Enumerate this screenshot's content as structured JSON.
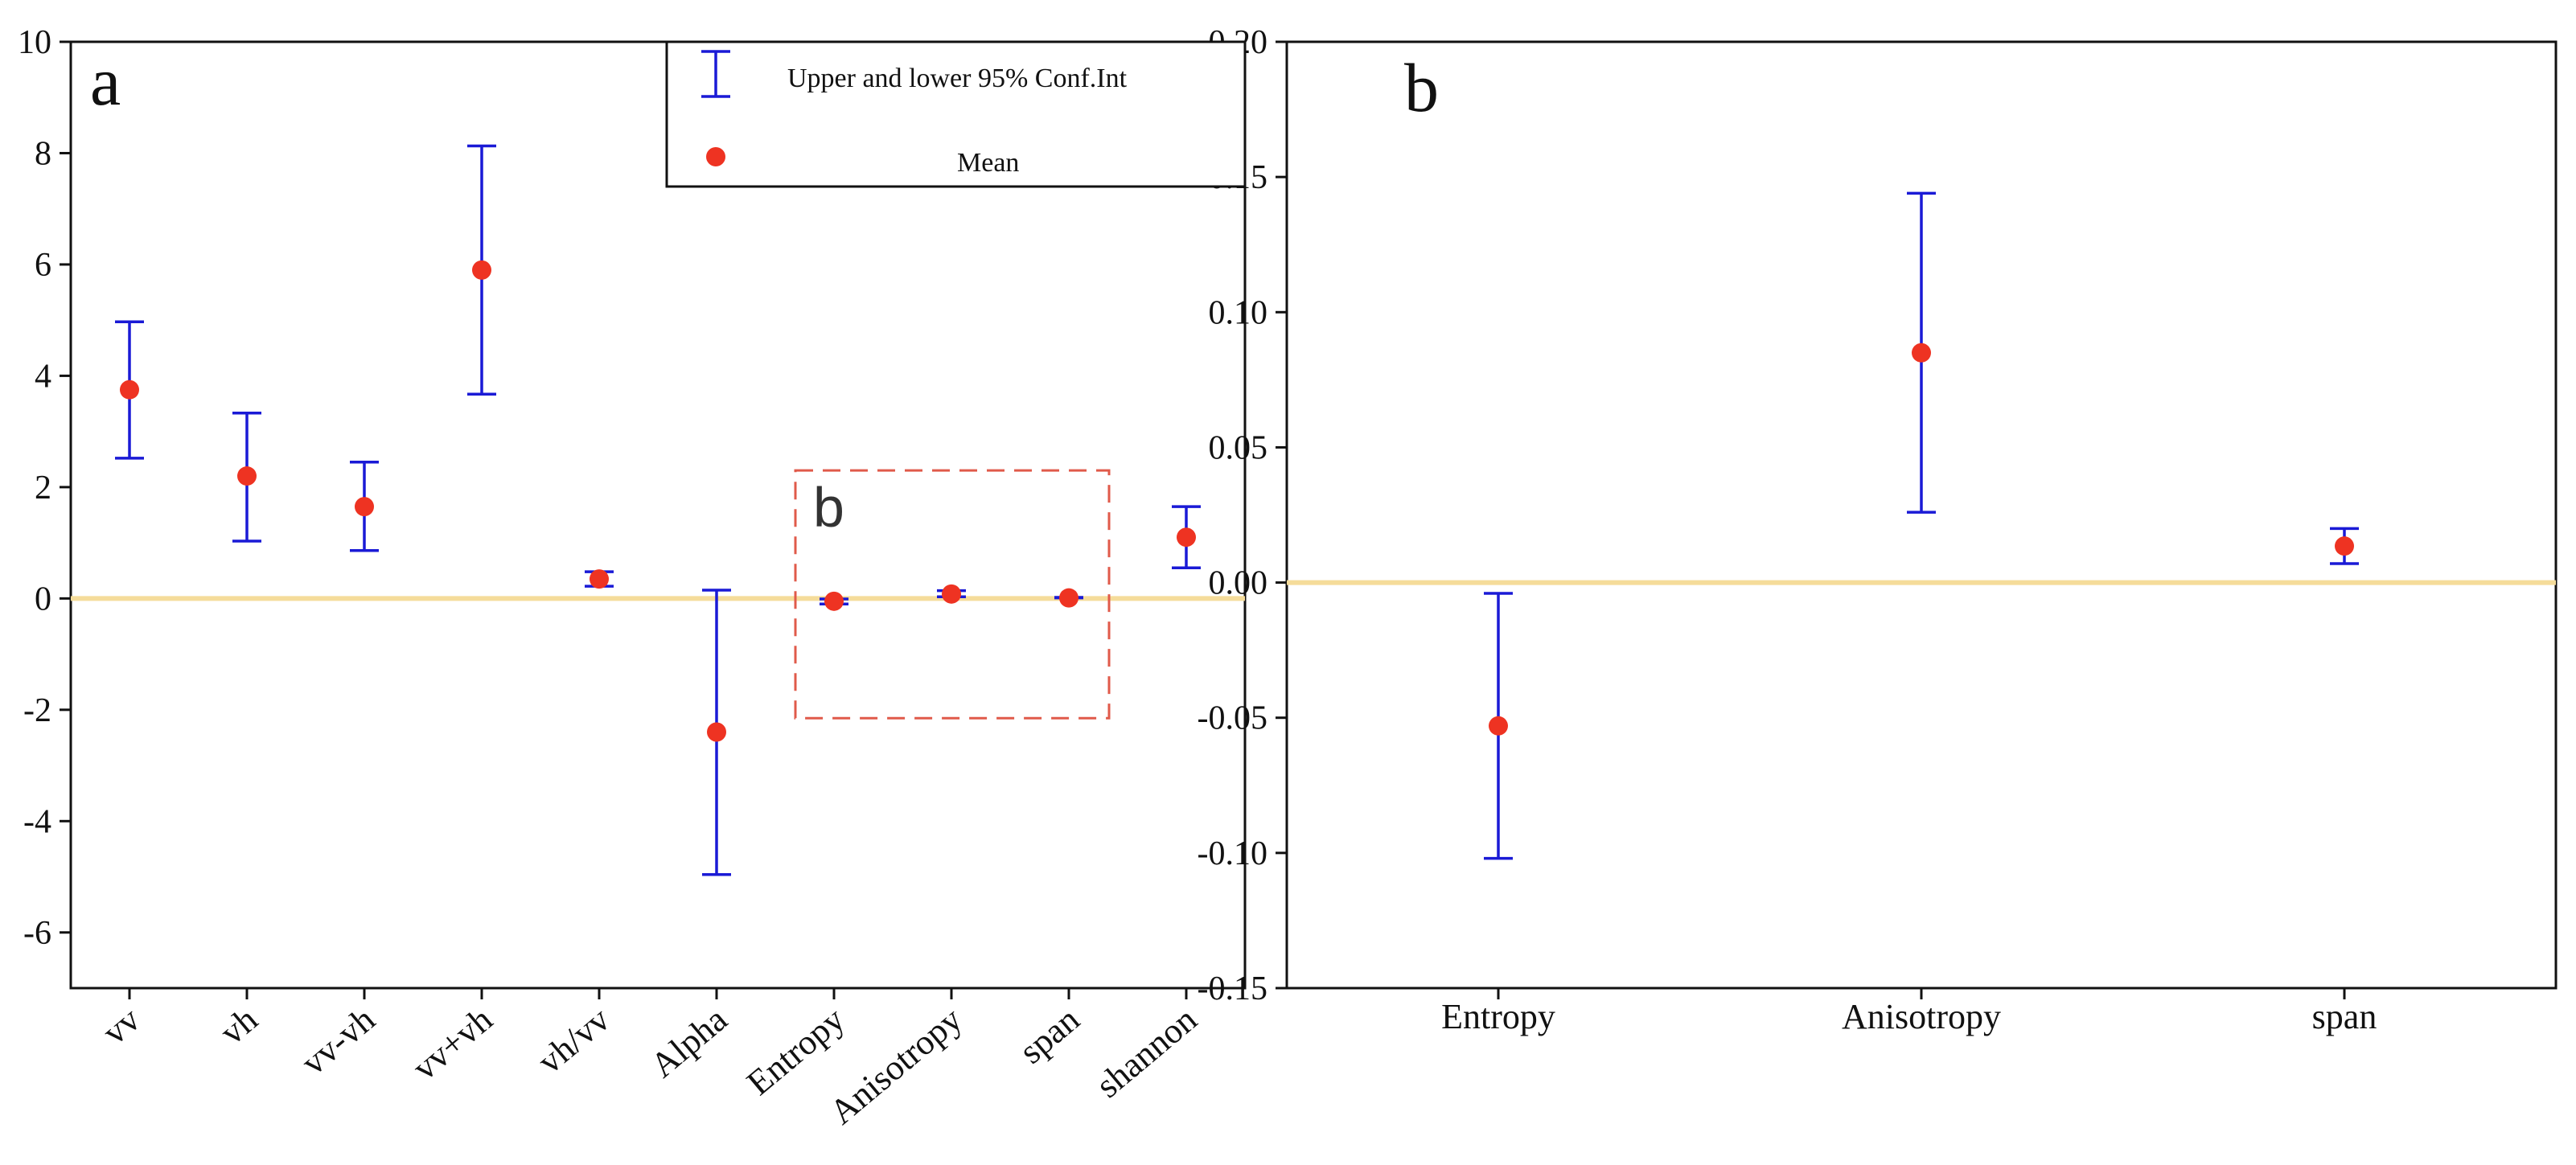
{
  "colors": {
    "errorbar": "#1a1ad6",
    "mean": "#ee3322",
    "zero_line": "#f5dc9a",
    "inset_box": "#e05a4a",
    "axis": "#111111"
  },
  "legend": {
    "ci_label": "Upper and lower 95% Conf.Int",
    "mean_label": "Mean"
  },
  "chart_data": [
    {
      "panel": "a",
      "type": "errorbar",
      "categories": [
        "vv",
        "vh",
        "vv-vh",
        "vv+vh",
        "vh/vv",
        "Alpha",
        "Entropy",
        "Anisotropy",
        "span",
        "shannon"
      ],
      "series": [
        {
          "name": "Mean",
          "values": [
            3.75,
            2.2,
            1.65,
            5.9,
            0.35,
            -2.4,
            -0.05,
            0.08,
            0.01,
            1.1
          ]
        },
        {
          "name": "Upper and lower 95% Conf.Int",
          "upper": [
            4.97,
            3.33,
            2.45,
            8.13,
            0.48,
            0.15,
            -0.01,
            0.14,
            0.02,
            1.65
          ],
          "lower": [
            2.52,
            1.03,
            0.86,
            3.67,
            0.22,
            -4.96,
            -0.1,
            0.03,
            0.01,
            0.55
          ]
        }
      ],
      "ylim": [
        -7,
        10
      ],
      "yticks": [
        -6,
        -4,
        -2,
        0,
        2,
        4,
        6,
        8,
        10
      ],
      "reference_line": 0,
      "inset_label": "b",
      "legend_position": "top-right"
    },
    {
      "panel": "b",
      "type": "errorbar",
      "categories": [
        "Entropy",
        "Anisotropy",
        "span"
      ],
      "series": [
        {
          "name": "Mean",
          "values": [
            -0.053,
            0.085,
            0.0135
          ]
        },
        {
          "name": "Upper and lower 95% Conf.Int",
          "upper": [
            -0.004,
            0.144,
            0.02
          ],
          "lower": [
            -0.102,
            0.026,
            0.007
          ]
        }
      ],
      "ylim": [
        -0.15,
        0.2
      ],
      "yticks": [
        "-0.15",
        "-0.10",
        "-0.05",
        "0.00",
        "0.05",
        "0.10",
        "0.15",
        "0.20"
      ],
      "reference_line": 0
    }
  ]
}
